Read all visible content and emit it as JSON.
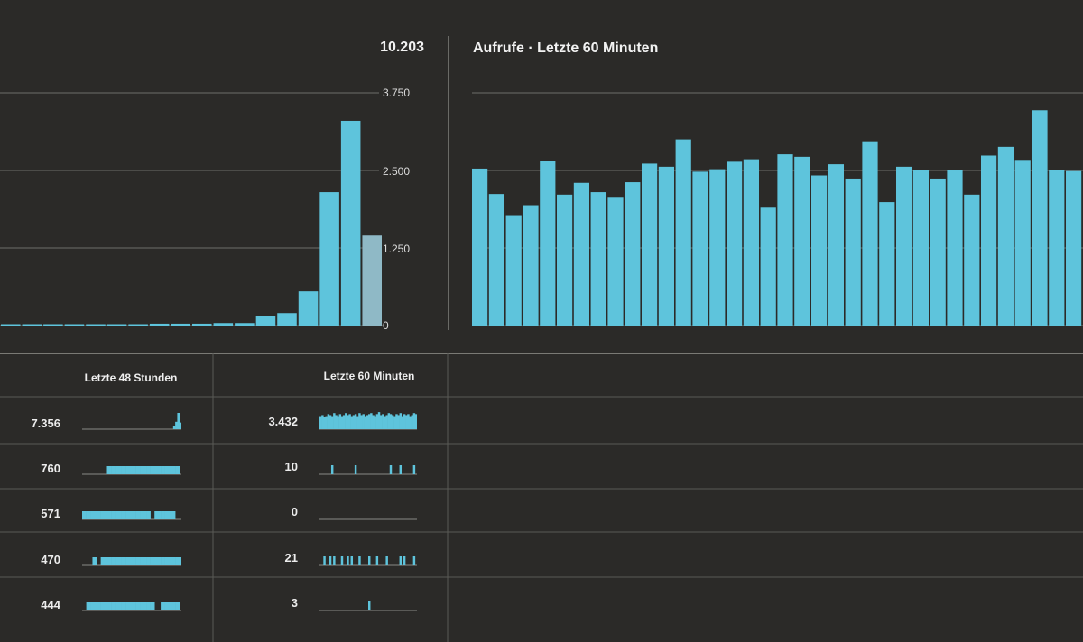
{
  "header": {
    "total": "10.203",
    "title": "Aufrufe · Letzte 60 Minuten"
  },
  "left_chart": {
    "y_ticks": [
      "3.750",
      "2.500",
      "1.250",
      "0"
    ]
  },
  "table": {
    "col_48h_label": "Letzte 48 Stunden",
    "col_60m_label": "Letzte 60 Minuten",
    "rows": [
      {
        "h48": "7.356",
        "m60": "3.432"
      },
      {
        "h48": "760",
        "m60": "10"
      },
      {
        "h48": "571",
        "m60": "0"
      },
      {
        "h48": "470",
        "m60": "21"
      },
      {
        "h48": "444",
        "m60": "3"
      }
    ]
  },
  "colors": {
    "background": "#2b2a28",
    "bar": "#5ec4dc",
    "bar_highlight": "#8fb9c6",
    "grid": "#6e6e6a"
  },
  "chart_data": [
    {
      "type": "bar",
      "title": "",
      "ylim": [
        0,
        3750
      ],
      "y_ticks": [
        0,
        1250,
        2500,
        3750
      ],
      "values": [
        10,
        10,
        10,
        10,
        10,
        20,
        20,
        30,
        30,
        30,
        40,
        40,
        150,
        200,
        550,
        2150,
        3300,
        1450
      ],
      "highlight_last": true,
      "grid": true
    },
    {
      "type": "bar",
      "title": "Aufrufe · Letzte 60 Minuten",
      "ylim": [
        0,
        3750
      ],
      "values": [
        2530,
        2120,
        1780,
        1940,
        2650,
        2110,
        2300,
        2150,
        2060,
        2310,
        2610,
        2560,
        3000,
        2480,
        2520,
        2640,
        2680,
        1900,
        2760,
        2720,
        2420,
        2600,
        2370,
        2970,
        1990,
        2560,
        2510,
        2370,
        2510,
        2110,
        2740,
        2880,
        2670,
        3470,
        2510,
        2490
      ],
      "grid": true
    }
  ],
  "sparklines": {
    "h48": [
      {
        "values": [
          0,
          0,
          0,
          0,
          0,
          0,
          0,
          0,
          0,
          0,
          0,
          0,
          0,
          0,
          0,
          0,
          0,
          0,
          0,
          0,
          0,
          0,
          0,
          0,
          0,
          0,
          0,
          0,
          0,
          0,
          0,
          0,
          0,
          0,
          0,
          0,
          0,
          0,
          0,
          0,
          0,
          0,
          0,
          0,
          4,
          10,
          22,
          9
        ]
      },
      {
        "values": [
          0,
          0,
          0,
          0,
          0,
          0,
          0,
          0,
          0,
          0,
          0,
          0,
          1,
          1,
          1,
          1,
          1,
          1,
          1,
          1,
          1,
          1,
          1,
          1,
          1,
          1,
          1,
          1,
          1,
          1,
          1,
          1,
          1,
          1,
          1,
          1,
          1,
          1,
          1,
          1,
          1,
          1,
          1,
          1,
          1,
          1,
          1,
          0
        ]
      },
      {
        "values": [
          1,
          1,
          1,
          1,
          1,
          1,
          1,
          1,
          1,
          1,
          1,
          1,
          1,
          1,
          1,
          1,
          1,
          1,
          1,
          1,
          1,
          1,
          1,
          1,
          1,
          1,
          1,
          1,
          1,
          1,
          1,
          1,
          1,
          0,
          0,
          1,
          1,
          1,
          1,
          1,
          1,
          1,
          1,
          1,
          1,
          0,
          0,
          0
        ]
      },
      {
        "values": [
          0,
          0,
          0,
          0,
          0,
          1,
          1,
          0,
          0,
          1,
          1,
          1,
          1,
          1,
          1,
          1,
          1,
          1,
          1,
          1,
          1,
          1,
          1,
          1,
          1,
          1,
          1,
          1,
          1,
          1,
          1,
          1,
          1,
          1,
          1,
          1,
          1,
          1,
          1,
          1,
          1,
          1,
          1,
          1,
          1,
          1,
          1,
          1
        ]
      },
      {
        "values": [
          0,
          0,
          1,
          1,
          1,
          1,
          1,
          1,
          1,
          1,
          1,
          1,
          1,
          1,
          1,
          1,
          1,
          1,
          1,
          1,
          1,
          1,
          1,
          1,
          1,
          1,
          1,
          1,
          1,
          1,
          1,
          1,
          1,
          1,
          1,
          0,
          0,
          0,
          1,
          1,
          1,
          1,
          1,
          1,
          1,
          1,
          1,
          0
        ]
      }
    ],
    "m60": [
      {
        "values": [
          13,
          14,
          12,
          13,
          15,
          14,
          13,
          16,
          14,
          13,
          15,
          13,
          14,
          16,
          14,
          15,
          13,
          14,
          15,
          13,
          16,
          14,
          15,
          13,
          14,
          15,
          16,
          14,
          13,
          15,
          17,
          14,
          15,
          13,
          14,
          16,
          15,
          14,
          13,
          15,
          14,
          16,
          13,
          15,
          14,
          15,
          13,
          14,
          16,
          15
        ]
      },
      {
        "values": [
          0,
          0,
          0,
          0,
          0,
          0,
          1,
          0,
          0,
          0,
          0,
          0,
          0,
          0,
          0,
          0,
          0,
          0,
          1,
          0,
          0,
          0,
          0,
          0,
          0,
          0,
          0,
          0,
          0,
          0,
          0,
          0,
          0,
          0,
          0,
          0,
          1,
          0,
          0,
          0,
          0,
          1,
          0,
          0,
          0,
          0,
          0,
          0,
          1,
          0
        ]
      },
      {
        "values": [
          0,
          0,
          0,
          0,
          0,
          0,
          0,
          0,
          0,
          0,
          0,
          0,
          0,
          0,
          0,
          0,
          0,
          0,
          0,
          0,
          0,
          0,
          0,
          0,
          0,
          0,
          0,
          0,
          0,
          0,
          0,
          0,
          0,
          0,
          0,
          0,
          0,
          0,
          0,
          0,
          0,
          0,
          0,
          0,
          0,
          0,
          0,
          0,
          0,
          0
        ]
      },
      {
        "values": [
          0,
          0,
          1,
          0,
          0,
          1,
          0,
          1,
          0,
          0,
          0,
          1,
          0,
          0,
          1,
          0,
          1,
          0,
          0,
          0,
          1,
          0,
          0,
          0,
          0,
          1,
          0,
          0,
          0,
          1,
          0,
          0,
          0,
          0,
          1,
          0,
          0,
          0,
          0,
          0,
          0,
          1,
          0,
          1,
          0,
          0,
          0,
          0,
          1,
          0
        ]
      },
      {
        "values": [
          0,
          0,
          0,
          0,
          0,
          0,
          0,
          0,
          0,
          0,
          0,
          0,
          0,
          0,
          0,
          0,
          0,
          0,
          0,
          0,
          0,
          0,
          0,
          0,
          0,
          1,
          0,
          0,
          0,
          0,
          0,
          0,
          0,
          0,
          0,
          0,
          0,
          0,
          0,
          0,
          0,
          0,
          0,
          0,
          0,
          0,
          0,
          0,
          0,
          0
        ]
      }
    ]
  }
}
